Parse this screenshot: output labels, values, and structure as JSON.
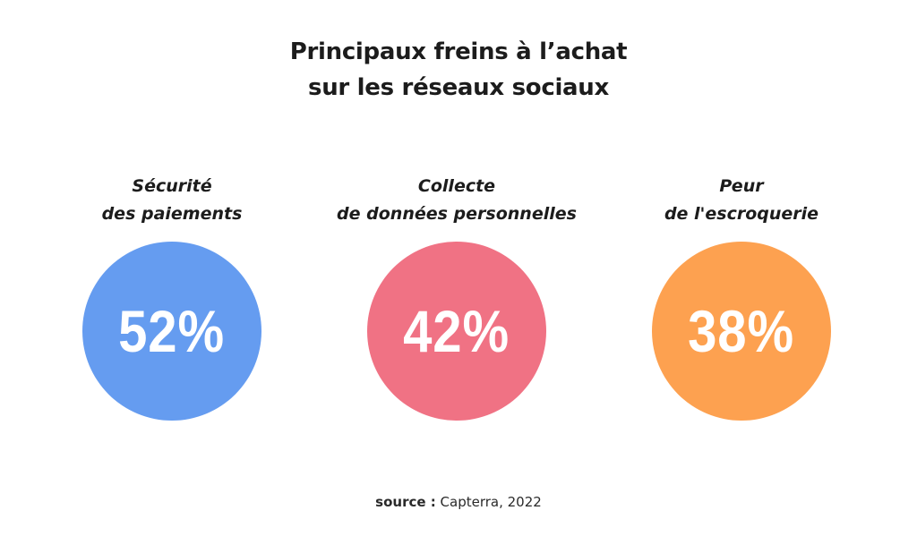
{
  "title": {
    "line1": "Principaux freins à l’achat",
    "line2": "sur les réseaux sociaux"
  },
  "source": {
    "label": "source :",
    "text": "Capterra, 2022"
  },
  "chart_data": {
    "type": "table",
    "title": "Principaux freins à l’achat sur les réseaux sociaux",
    "unit": "%",
    "categories": [
      "Sécurité des paiements",
      "Collecte de données personnelles",
      "Peur de l'escroquerie"
    ],
    "values": [
      52,
      42,
      38
    ],
    "items": [
      {
        "label_line1": "Sécurité",
        "label_line2": "des paiements",
        "value": 52,
        "display": "52%",
        "color": "#659cf0"
      },
      {
        "label_line1": "Collecte",
        "label_line2": "de données personnelles",
        "value": 42,
        "display": "42%",
        "color": "#f07284"
      },
      {
        "label_line1": "Peur",
        "label_line2": "de l'escroquerie",
        "value": 38,
        "display": "38%",
        "color": "#fda150"
      }
    ]
  }
}
